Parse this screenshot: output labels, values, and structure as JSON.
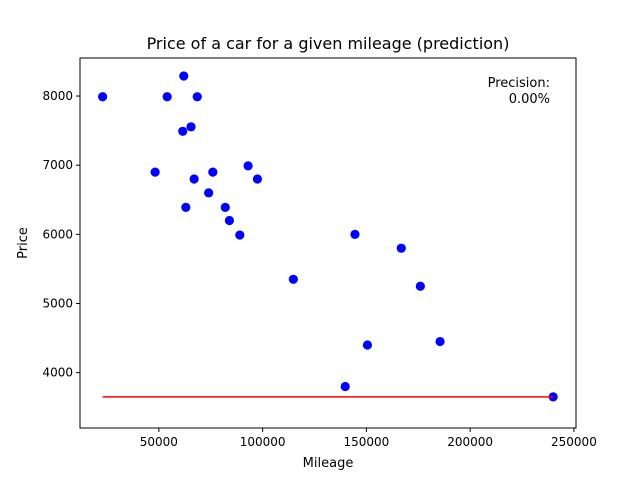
{
  "chart_data": {
    "type": "scatter",
    "title": "Price of a car for a given mileage (prediction)",
    "xlabel": "Mileage",
    "ylabel": "Price",
    "xlim": [
      12000,
      251000
    ],
    "ylim": [
      3200,
      8550
    ],
    "xticks": [
      50000,
      100000,
      150000,
      200000,
      250000
    ],
    "yticks": [
      4000,
      5000,
      6000,
      7000,
      8000
    ],
    "xtick_labels": [
      "50000",
      "100000",
      "150000",
      "200000",
      "250000"
    ],
    "ytick_labels": [
      "4000",
      "5000",
      "6000",
      "7000",
      "8000"
    ],
    "grid": false,
    "annotation": {
      "line1": "Precision:",
      "line2": "0.00%"
    },
    "series": [
      {
        "color": "#0000ff",
        "marker": "circle",
        "points": [
          {
            "x": 240000,
            "y": 3650
          },
          {
            "x": 139800,
            "y": 3800
          },
          {
            "x": 150500,
            "y": 4400
          },
          {
            "x": 185500,
            "y": 4450
          },
          {
            "x": 176000,
            "y": 5250
          },
          {
            "x": 114800,
            "y": 5350
          },
          {
            "x": 166800,
            "y": 5800
          },
          {
            "x": 89000,
            "y": 5990
          },
          {
            "x": 144500,
            "y": 6000
          },
          {
            "x": 84000,
            "y": 6200
          },
          {
            "x": 82000,
            "y": 6390
          },
          {
            "x": 63000,
            "y": 6390
          },
          {
            "x": 74000,
            "y": 6600
          },
          {
            "x": 97500,
            "y": 6800
          },
          {
            "x": 67000,
            "y": 6800
          },
          {
            "x": 48200,
            "y": 6900
          },
          {
            "x": 76000,
            "y": 6900
          },
          {
            "x": 93000,
            "y": 6990
          },
          {
            "x": 61500,
            "y": 7490
          },
          {
            "x": 65500,
            "y": 7555
          },
          {
            "x": 22900,
            "y": 7990
          },
          {
            "x": 54000,
            "y": 7990
          },
          {
            "x": 68500,
            "y": 7990
          },
          {
            "x": 62000,
            "y": 8290
          }
        ]
      }
    ],
    "prediction_line": {
      "color": "#ff0000",
      "points": [
        {
          "x": 22900,
          "y": 3650
        },
        {
          "x": 240000,
          "y": 3650
        }
      ]
    }
  }
}
